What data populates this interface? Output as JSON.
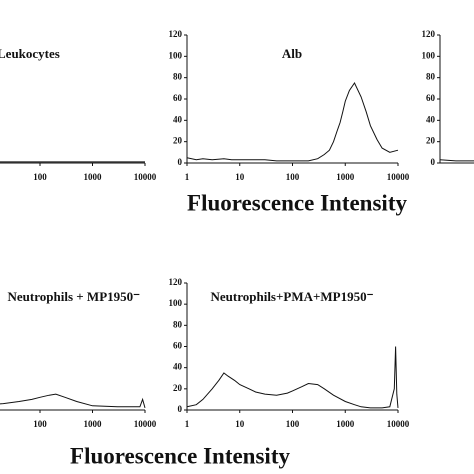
{
  "chart_data": [
    {
      "type": "line",
      "title": "Leukocytes",
      "xscale": "log",
      "xlim": [
        1,
        10000
      ],
      "xticks": [
        100,
        1000,
        10000
      ],
      "ylim": [
        0,
        120
      ],
      "color": "#111111",
      "x": [
        1,
        10,
        30,
        100,
        300,
        1000,
        3000,
        10000
      ],
      "values": [
        1,
        1,
        1,
        1,
        1,
        1,
        1,
        1
      ]
    },
    {
      "type": "line",
      "title": "Alb",
      "xscale": "log",
      "xlim": [
        1,
        10000
      ],
      "xticks": [
        1,
        10,
        100,
        1000,
        10000
      ],
      "ylim": [
        0,
        120
      ],
      "yticks": [
        0,
        20,
        40,
        60,
        80,
        100,
        120
      ],
      "color": "#111111",
      "xlabel": "Fluorescence Intensity",
      "x": [
        1,
        1.5,
        2,
        3,
        5,
        7,
        10,
        20,
        30,
        50,
        100,
        200,
        300,
        400,
        500,
        600,
        700,
        800,
        900,
        1000,
        1200,
        1500,
        2000,
        2500,
        3000,
        4000,
        5000,
        7000,
        10000
      ],
      "values": [
        5,
        3,
        4,
        3,
        4,
        3,
        3,
        3,
        3,
        2,
        2,
        2,
        4,
        8,
        12,
        20,
        30,
        38,
        48,
        58,
        68,
        75,
        62,
        48,
        35,
        22,
        14,
        10,
        12
      ]
    },
    {
      "type": "line",
      "xscale": "log",
      "xlim": [
        1,
        10000
      ],
      "ylim": [
        0,
        120
      ],
      "yticks": [
        0,
        20,
        40,
        60,
        80,
        100,
        120
      ],
      "color": "#111111",
      "x": [
        1,
        2,
        5,
        10
      ],
      "values": [
        3,
        2,
        2,
        2
      ]
    },
    {
      "type": "line",
      "title": "Neutrophils + MP1950⁻",
      "xscale": "log",
      "xlim": [
        1,
        10000
      ],
      "xticks": [
        100,
        1000,
        10000
      ],
      "ylim": [
        0,
        120
      ],
      "color": "#111111",
      "x": [
        1,
        5,
        10,
        20,
        40,
        70,
        100,
        150,
        200,
        300,
        500,
        1000,
        3000,
        8000,
        9000,
        10000
      ],
      "values": [
        3,
        4,
        5,
        6,
        8,
        10,
        12,
        14,
        15,
        12,
        8,
        4,
        3,
        3,
        10,
        2
      ]
    },
    {
      "type": "line",
      "title": "Neutrophils+PMA+MP1950⁻",
      "xscale": "log",
      "xlim": [
        1,
        10000
      ],
      "xticks": [
        1,
        10,
        100,
        1000,
        10000
      ],
      "ylim": [
        0,
        120
      ],
      "yticks": [
        0,
        20,
        40,
        60,
        80,
        100,
        120
      ],
      "color": "#111111",
      "xlabel": "Fluorescence Intensity",
      "x": [
        1,
        1.5,
        2,
        3,
        4,
        5,
        6,
        8,
        10,
        15,
        20,
        30,
        50,
        80,
        100,
        150,
        200,
        300,
        400,
        600,
        1000,
        1500,
        2000,
        3000,
        5000,
        7000,
        8500,
        9000,
        9500,
        10000
      ],
      "values": [
        3,
        5,
        10,
        20,
        28,
        35,
        32,
        28,
        24,
        20,
        17,
        15,
        14,
        16,
        18,
        22,
        25,
        24,
        20,
        14,
        8,
        5,
        3,
        2,
        2,
        3,
        20,
        60,
        15,
        2
      ]
    }
  ]
}
